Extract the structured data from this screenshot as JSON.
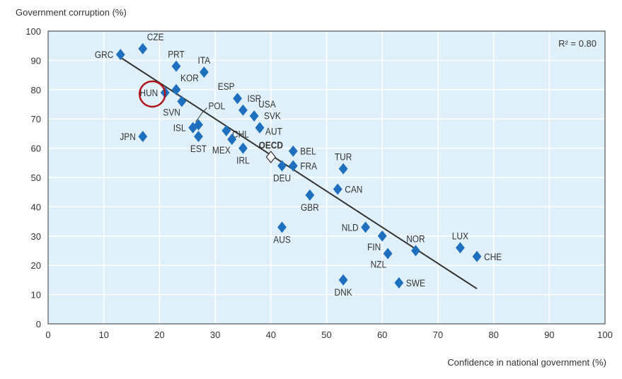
{
  "chart_data": {
    "type": "scatter",
    "title": "",
    "xlabel": "Confidence in national government (%)",
    "ylabel": "Government corruption (%)",
    "xlim": [
      0,
      100
    ],
    "ylim": [
      0,
      100
    ],
    "xticks": [
      0,
      10,
      20,
      30,
      40,
      50,
      60,
      70,
      80,
      90,
      100
    ],
    "yticks": [
      0,
      10,
      20,
      30,
      40,
      50,
      60,
      70,
      80,
      90,
      100
    ],
    "grid": true,
    "annotation": "R² = 0.80",
    "highlight": "HUN",
    "trendline": {
      "x": [
        13,
        77
      ],
      "y": [
        91,
        12
      ]
    },
    "colors": {
      "point": "#1f6fbf",
      "background": "#dff0fa",
      "highlight": "#b0141c",
      "trend": "#333333"
    },
    "points": [
      {
        "label": "GRC",
        "x": 13,
        "y": 92,
        "pos": "left"
      },
      {
        "label": "CZE",
        "x": 17,
        "y": 94,
        "pos": "above-right"
      },
      {
        "label": "PRT",
        "x": 23,
        "y": 88,
        "pos": "above"
      },
      {
        "label": "ITA",
        "x": 28,
        "y": 86,
        "pos": "above"
      },
      {
        "label": "KOR",
        "x": 23,
        "y": 80,
        "pos": "above-right"
      },
      {
        "label": "HUN",
        "x": 21,
        "y": 79,
        "pos": "left"
      },
      {
        "label": "SVN",
        "x": 24,
        "y": 76,
        "pos": "below-left"
      },
      {
        "label": "POL",
        "x": 27,
        "y": 68,
        "pos": "leader"
      },
      {
        "label": "ISL",
        "x": 26,
        "y": 67,
        "pos": "left"
      },
      {
        "label": "CHL",
        "x": 32,
        "y": 66,
        "pos": "left-below"
      },
      {
        "label": "EST",
        "x": 27,
        "y": 64,
        "pos": "below"
      },
      {
        "label": "MEX",
        "x": 33,
        "y": 63,
        "pos": "below-left"
      },
      {
        "label": "IRL",
        "x": 35,
        "y": 60,
        "pos": "below"
      },
      {
        "label": "JPN",
        "x": 17,
        "y": 64,
        "pos": "left"
      },
      {
        "label": "ESP",
        "x": 34,
        "y": 77,
        "pos": "above-left"
      },
      {
        "label": "ISR",
        "x": 35,
        "y": 73,
        "pos": "above-right"
      },
      {
        "label": "USA",
        "x": 37,
        "y": 71,
        "pos": "above-right"
      },
      {
        "label": "SVK",
        "x": 38,
        "y": 67,
        "pos": "above-right"
      },
      {
        "label": "AUT",
        "x": 38,
        "y": 67,
        "pos": "right-below"
      },
      {
        "label": "OECD",
        "x": 40,
        "y": 57,
        "pos": "above",
        "bold": true,
        "open": true
      },
      {
        "label": "DEU",
        "x": 42,
        "y": 54,
        "pos": "below"
      },
      {
        "label": "BEL",
        "x": 44,
        "y": 59,
        "pos": "right"
      },
      {
        "label": "FRA",
        "x": 44,
        "y": 54,
        "pos": "right"
      },
      {
        "label": "TUR",
        "x": 53,
        "y": 53,
        "pos": "above"
      },
      {
        "label": "CAN",
        "x": 52,
        "y": 46,
        "pos": "right"
      },
      {
        "label": "GBR",
        "x": 47,
        "y": 44,
        "pos": "below"
      },
      {
        "label": "AUS",
        "x": 42,
        "y": 33,
        "pos": "below"
      },
      {
        "label": "NLD",
        "x": 57,
        "y": 33,
        "pos": "left"
      },
      {
        "label": "FIN",
        "x": 60,
        "y": 30,
        "pos": "below-left"
      },
      {
        "label": "NZL",
        "x": 61,
        "y": 24,
        "pos": "below-left"
      },
      {
        "label": "NOR",
        "x": 66,
        "y": 25,
        "pos": "above"
      },
      {
        "label": "LUX",
        "x": 74,
        "y": 26,
        "pos": "above"
      },
      {
        "label": "CHE",
        "x": 77,
        "y": 23,
        "pos": "right"
      },
      {
        "label": "DNK",
        "x": 53,
        "y": 15,
        "pos": "below"
      },
      {
        "label": "SWE",
        "x": 63,
        "y": 14,
        "pos": "right"
      }
    ]
  }
}
